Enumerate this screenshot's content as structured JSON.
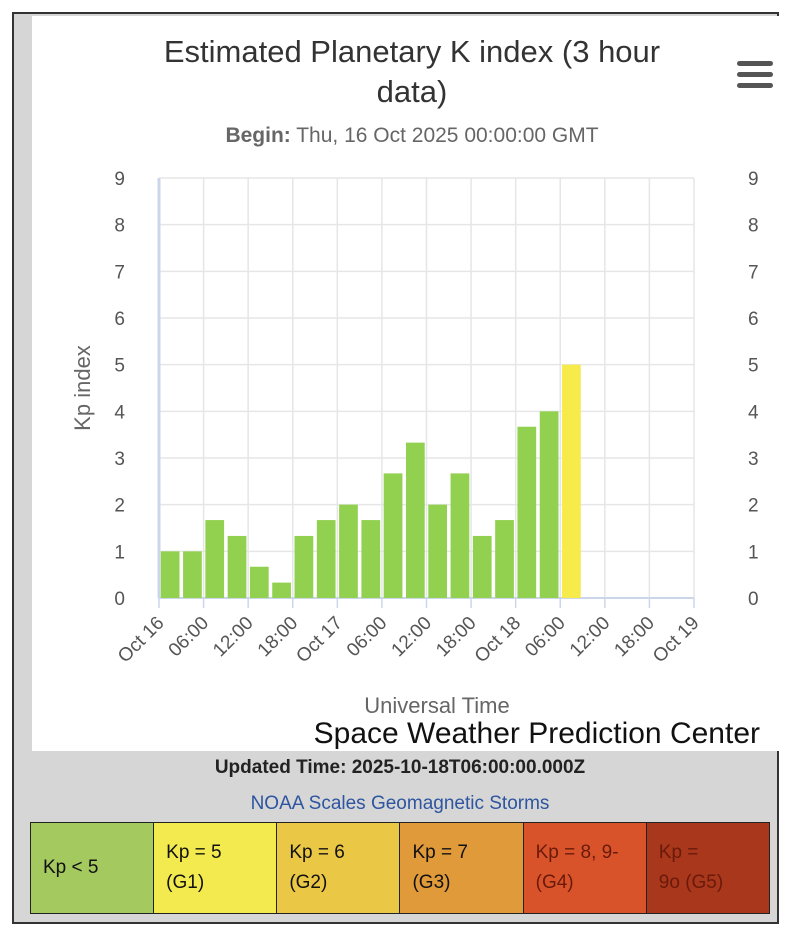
{
  "chart_data": {
    "type": "bar",
    "title": "Estimated Planetary K index (3 hour data)",
    "title_lines": [
      "Estimated Planetary K index (3 hour",
      "data)"
    ],
    "subtitle_label": "Begin:",
    "subtitle_value": "Thu, 16 Oct 2025 00:00:00 GMT",
    "ylabel": "Kp index",
    "xlabel": "Universal Time",
    "credit": "Space Weather Prediction Center",
    "ylim": [
      0,
      9
    ],
    "yticks": [
      "0",
      "1",
      "2",
      "3",
      "4",
      "5",
      "6",
      "7",
      "8",
      "9"
    ],
    "xtick_labels": [
      "Oct 16",
      "06:00",
      "12:00",
      "18:00",
      "Oct 17",
      "06:00",
      "12:00",
      "18:00",
      "Oct 18",
      "06:00",
      "12:00",
      "18:00",
      "Oct 19"
    ],
    "x": [
      "2025-10-16 00:00",
      "2025-10-16 03:00",
      "2025-10-16 06:00",
      "2025-10-16 09:00",
      "2025-10-16 12:00",
      "2025-10-16 15:00",
      "2025-10-16 18:00",
      "2025-10-16 21:00",
      "2025-10-17 00:00",
      "2025-10-17 03:00",
      "2025-10-17 06:00",
      "2025-10-17 09:00",
      "2025-10-17 12:00",
      "2025-10-17 15:00",
      "2025-10-17 18:00",
      "2025-10-17 21:00",
      "2025-10-18 00:00",
      "2025-10-18 03:00",
      "2025-10-18 06:00"
    ],
    "values": [
      1.0,
      1.0,
      1.67,
      1.33,
      0.67,
      0.33,
      1.33,
      1.67,
      2.0,
      1.67,
      2.67,
      3.33,
      2.0,
      2.67,
      1.33,
      1.67,
      3.67,
      4.0,
      5.0
    ],
    "bar_colors": {
      "below_5": "#92d050",
      "g1": "#f6eb4a"
    },
    "grid": true
  },
  "updated_time": "Updated Time: 2025-10-18T06:00:00.000Z",
  "scales_link": "NOAA Scales Geomagnetic Storms",
  "scale_legend": [
    {
      "line1": "Kp < 5",
      "line2": "",
      "color": "#a3c95f"
    },
    {
      "line1": "Kp = 5",
      "line2": "(G1)",
      "color": "#f2ea4e"
    },
    {
      "line1": "Kp = 6",
      "line2": "(G2)",
      "color": "#eac744"
    },
    {
      "line1": "Kp = 7",
      "line2": "(G3)",
      "color": "#e09a3a"
    },
    {
      "line1": "Kp = 8, 9-",
      "line2": "(G4)",
      "color": "#d9532a"
    },
    {
      "line1": "Kp =",
      "line2": "9o (G5)",
      "color": "#a8371c"
    }
  ]
}
